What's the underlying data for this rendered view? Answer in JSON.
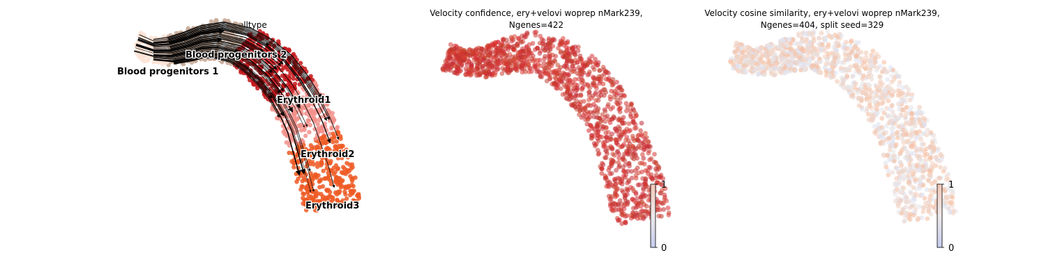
{
  "chart_data": [
    {
      "type": "scatter",
      "title": "celltype",
      "legend": "on data",
      "grid": false,
      "series": [
        {
          "name": "Blood progenitors 1",
          "color": "#fbe3d6"
        },
        {
          "name": "Blood progenitors 2",
          "color": "#c8ab99"
        },
        {
          "name": "Erythroid1",
          "color": "#c4171b"
        },
        {
          "name": "Erythroid2",
          "color": "#f3918b"
        },
        {
          "name": "Erythroid3",
          "color": "#ef5a24"
        }
      ],
      "overlay": "velocity streamlines"
    },
    {
      "type": "scatter",
      "title_line1": "Velocity confidence, ery+velovi woprep nMark239,",
      "title_line2": "Ngenes=422",
      "colorbar": {
        "min": 0,
        "max": 1,
        "ticks": [
          "0",
          "1"
        ]
      },
      "colormap": "coolwarm",
      "grid": false
    },
    {
      "type": "scatter",
      "title_line1": "Velocity cosine similarity, ery+velovi woprep nMark239,",
      "title_line2": "Ngenes=404, split seed=329",
      "colorbar": {
        "min": 0,
        "max": 1,
        "ticks": [
          "0",
          "1"
        ]
      },
      "colormap": "coolwarm",
      "grid": false
    }
  ]
}
